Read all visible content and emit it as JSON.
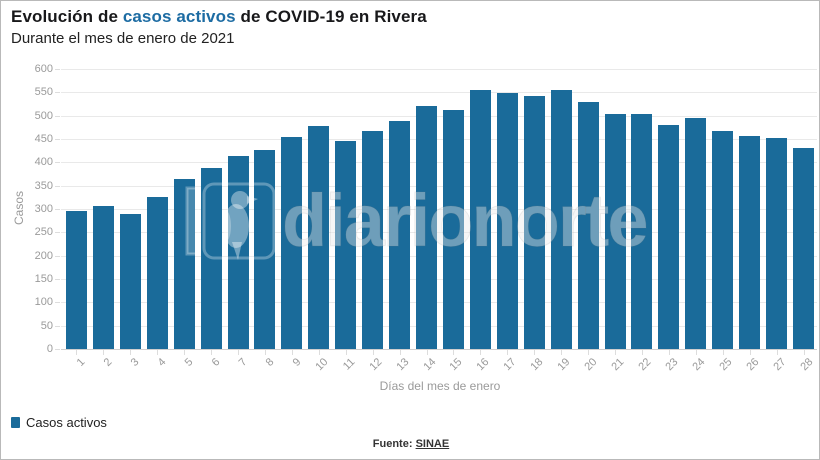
{
  "header": {
    "title_prefix": "Evolución de ",
    "title_highlight": "casos activos",
    "title_suffix": " de COVID-19 en Rivera",
    "subtitle": "Durante el mes de enero de 2021"
  },
  "chart_data": {
    "type": "bar",
    "title": "Evolución de casos activos de COVID-19 en Rivera",
    "subtitle": "Durante el mes de enero de 2021",
    "categories": [
      "1",
      "2",
      "3",
      "4",
      "5",
      "6",
      "7",
      "8",
      "9",
      "10",
      "11",
      "12",
      "13",
      "14",
      "15",
      "16",
      "17",
      "18",
      "19",
      "20",
      "21",
      "22",
      "23",
      "24",
      "25",
      "26",
      "27",
      "28"
    ],
    "values": [
      296,
      307,
      290,
      325,
      365,
      387,
      413,
      427,
      455,
      478,
      445,
      467,
      488,
      520,
      513,
      556,
      549,
      543,
      556,
      529,
      504,
      504,
      480,
      494,
      468,
      457,
      452,
      431
    ],
    "xlabel": "Días del mes de enero",
    "ylabel": "Casos",
    "ylim": [
      0,
      600
    ],
    "ytick_step": 50,
    "grid": true,
    "legend_entries": [
      "Casos activos"
    ],
    "legend_position": "bottom-left",
    "bar_color": "#1a6b9a"
  },
  "legend": {
    "label": "Casos activos"
  },
  "footer": {
    "source_label": "Fuente:",
    "source_link_text": "SINAE"
  },
  "watermark": {
    "text": "diarionorte",
    "icon": "bird-logo"
  },
  "colors": {
    "bar": "#1a6b9a",
    "title_highlight": "#1d6ca3",
    "axis_text": "#9a9a9a",
    "gridline": "#e9e9e9"
  }
}
